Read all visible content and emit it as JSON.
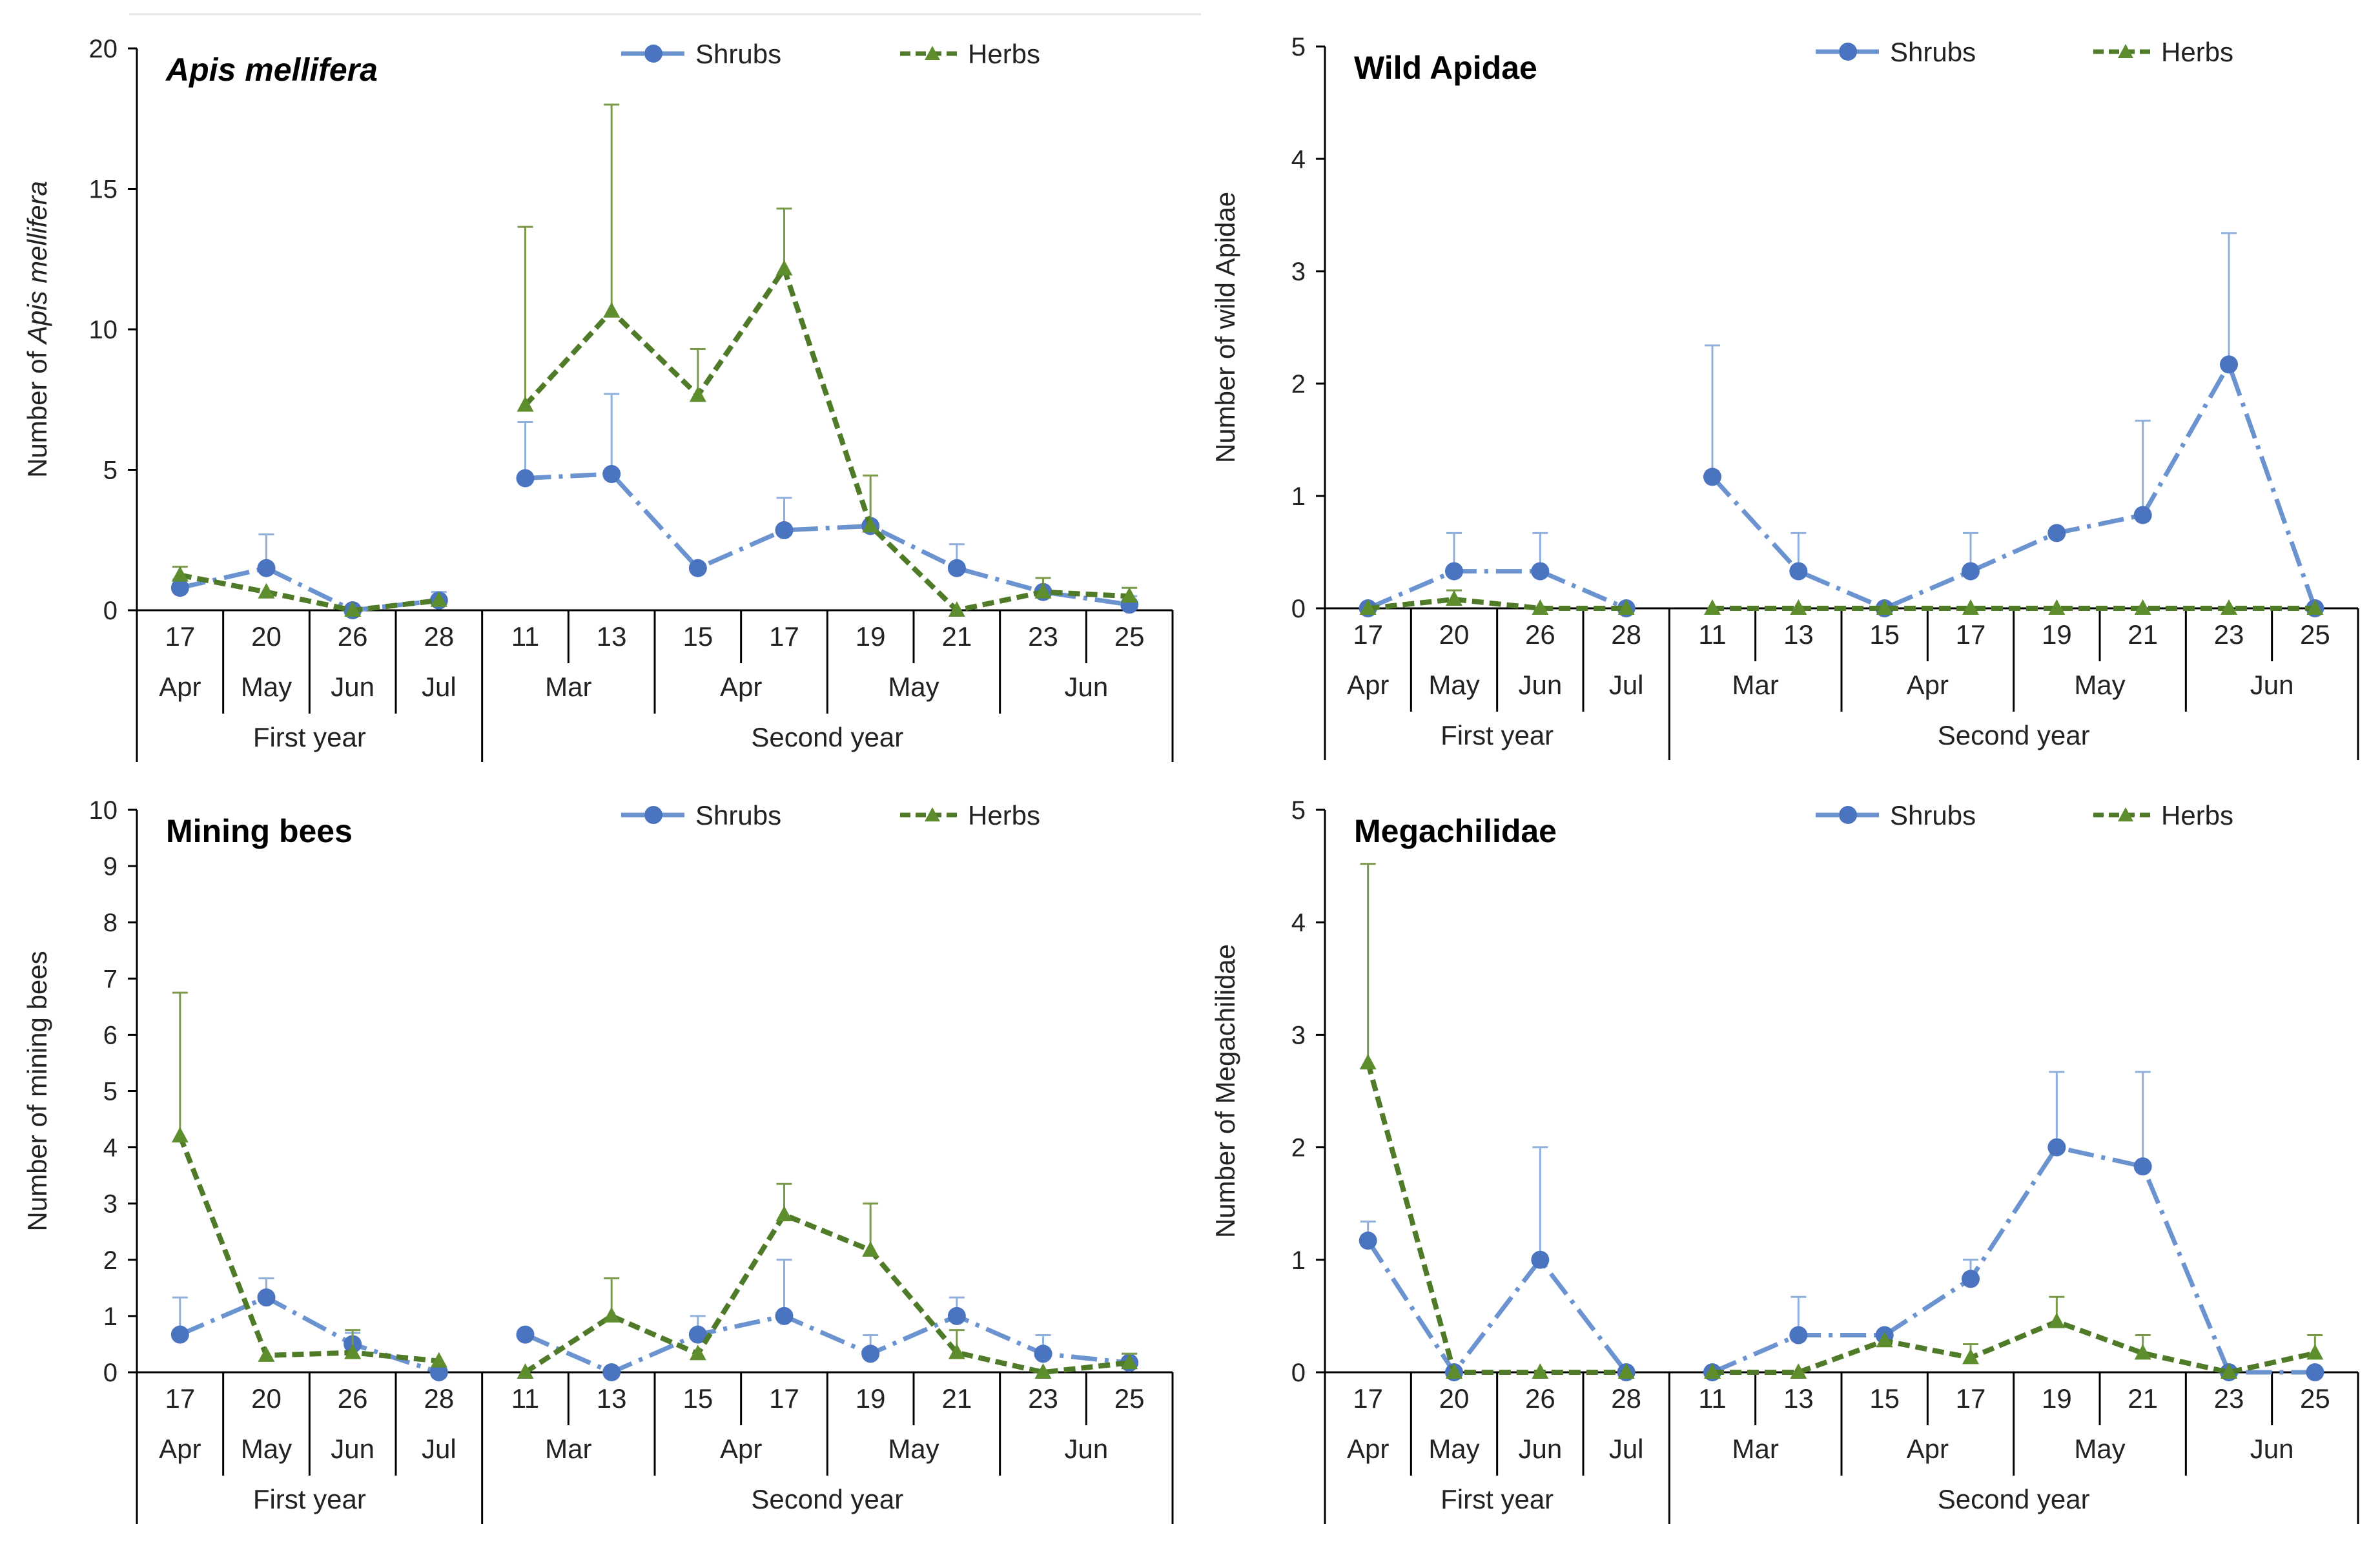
{
  "colors": {
    "shrubs": "#6a93d0",
    "shrubs_marker": "#4a74bf",
    "herbs": "#4f7a28",
    "herbs_marker": "#5e8d2e",
    "herbs_err": "#7a9a4a",
    "shrubs_err": "#8fb0dd",
    "axis": "#000000"
  },
  "categories": {
    "days": [
      "17",
      "20",
      "26",
      "28",
      "11",
      "13",
      "15",
      "17",
      "19",
      "21",
      "23",
      "25"
    ],
    "months": [
      "Apr",
      "May",
      "Jun",
      "Jul",
      "Mar",
      "Apr",
      "May",
      "Jun"
    ],
    "years": [
      "First year",
      "Second year"
    ]
  },
  "legend": {
    "shrubs": "Shrubs",
    "herbs": "Herbs"
  },
  "chart_data": [
    {
      "type": "line",
      "title": "Apis mellifera",
      "title_italic": true,
      "ylabel_prefix": "Number of ",
      "ylabel_species": "Apis mellifera",
      "ylim": [
        0,
        20
      ],
      "yticks": [
        0,
        5,
        10,
        15,
        20
      ],
      "series": [
        {
          "name": "Shrubs",
          "values": [
            0.8,
            1.5,
            0.0,
            0.35,
            4.7,
            4.85,
            1.5,
            2.85,
            3.0,
            1.5,
            0.65,
            0.2
          ],
          "errors": [
            0.3,
            1.2,
            0.1,
            0.3,
            2.0,
            2.85,
            0.0,
            1.15,
            0.0,
            0.85,
            0.5,
            0.3
          ]
        },
        {
          "name": "Herbs",
          "values": [
            1.25,
            0.65,
            0.0,
            0.35,
            7.3,
            10.65,
            7.65,
            12.15,
            3.0,
            0.0,
            0.65,
            0.5
          ],
          "errors": [
            0.3,
            0.0,
            0.0,
            0.0,
            6.35,
            7.35,
            1.65,
            2.15,
            1.8,
            0.0,
            0.5,
            0.3
          ]
        }
      ]
    },
    {
      "type": "line",
      "title": "Wild Apidae",
      "title_italic": false,
      "ylabel": "Number of wild Apidae",
      "ylim": [
        0,
        5
      ],
      "yticks": [
        0,
        1,
        2,
        3,
        4,
        5
      ],
      "series": [
        {
          "name": "Shrubs",
          "values": [
            0.0,
            0.33,
            0.33,
            0.0,
            1.17,
            0.33,
            0.0,
            0.33,
            0.67,
            0.83,
            2.17,
            0.0
          ],
          "errors": [
            0.0,
            0.34,
            0.34,
            0.0,
            1.17,
            0.34,
            0.0,
            0.34,
            0.0,
            0.84,
            1.17,
            0.0
          ]
        },
        {
          "name": "Herbs",
          "values": [
            0.0,
            0.08,
            0.0,
            0.0,
            0.0,
            0.0,
            0.0,
            0.0,
            0.0,
            0.0,
            0.0,
            0.0
          ],
          "errors": [
            0.0,
            0.08,
            0.0,
            0.0,
            0.0,
            0.0,
            0.0,
            0.0,
            0.0,
            0.0,
            0.0,
            0.0
          ]
        }
      ]
    },
    {
      "type": "line",
      "title": "Mining bees",
      "title_italic": false,
      "ylabel": "Number of mining bees",
      "ylim": [
        0,
        10
      ],
      "yticks": [
        0,
        1,
        2,
        3,
        4,
        5,
        6,
        7,
        8,
        9,
        10
      ],
      "series": [
        {
          "name": "Shrubs",
          "values": [
            0.67,
            1.33,
            0.5,
            0.0,
            0.67,
            0.0,
            0.67,
            1.0,
            0.33,
            1.0,
            0.33,
            0.17
          ],
          "errors": [
            0.66,
            0.34,
            0.2,
            0.0,
            0.0,
            0.0,
            0.33,
            1.0,
            0.33,
            0.33,
            0.33,
            0.16
          ]
        },
        {
          "name": "Herbs",
          "values": [
            4.2,
            0.3,
            0.35,
            0.2,
            0.0,
            1.0,
            0.33,
            2.8,
            2.17,
            0.35,
            0.0,
            0.17
          ],
          "errors": [
            2.55,
            0.0,
            0.4,
            0.0,
            0.0,
            0.67,
            0.0,
            0.55,
            0.83,
            0.4,
            0.0,
            0.16
          ]
        }
      ]
    },
    {
      "type": "line",
      "title": "Megachilidae",
      "title_italic": false,
      "ylabel": "Number of Megachilidae",
      "ylim": [
        0,
        5
      ],
      "yticks": [
        0,
        1,
        2,
        3,
        4,
        5
      ],
      "series": [
        {
          "name": "Shrubs",
          "values": [
            1.17,
            0.0,
            1.0,
            0.0,
            0.0,
            0.33,
            0.33,
            0.83,
            2.0,
            1.83,
            0.0,
            0.0
          ],
          "errors": [
            0.17,
            0.0,
            1.0,
            0.0,
            0.0,
            0.34,
            0.0,
            0.17,
            0.67,
            0.84,
            0.0,
            0.0
          ]
        },
        {
          "name": "Herbs",
          "values": [
            2.75,
            0.0,
            0.0,
            0.0,
            0.0,
            0.0,
            0.28,
            0.13,
            0.45,
            0.17,
            0.0,
            0.17
          ],
          "errors": [
            1.77,
            0.0,
            0.0,
            0.0,
            0.0,
            0.0,
            0.0,
            0.12,
            0.22,
            0.16,
            0.0,
            0.16
          ]
        }
      ]
    }
  ]
}
